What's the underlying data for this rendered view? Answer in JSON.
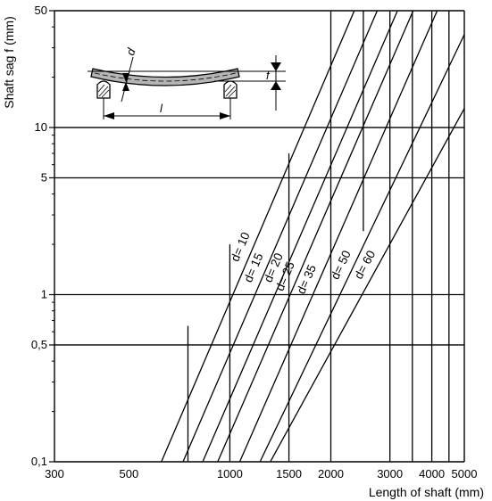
{
  "chart_data": {
    "type": "line",
    "title": "",
    "xlabel": "Length of shaft (mm)",
    "ylabel": "Shaft sag f (mm)",
    "x_scale": "log",
    "y_scale": "log",
    "xlim": [
      300,
      5000
    ],
    "ylim": [
      0.1,
      50
    ],
    "x_ticks": [
      300,
      500,
      1000,
      1500,
      2000,
      3000,
      4000,
      5000
    ],
    "x_tick_labels": [
      "300",
      "500",
      "1000",
      "1500",
      "2000",
      "3000",
      "4000",
      "5000"
    ],
    "y_ticks": [
      0.1,
      0.5,
      1,
      5,
      10,
      50
    ],
    "y_tick_labels": [
      "0,1",
      "0,5",
      "1",
      "5",
      "10",
      "50"
    ],
    "h_gridlines": [
      0.5,
      1,
      5,
      10
    ],
    "v_gridlines": [
      {
        "x": 750,
        "from": 0.1,
        "to": 0.65
      },
      {
        "x": 1000,
        "from": 0.1,
        "to": 2.0
      },
      {
        "x": 1500,
        "from": 0.1,
        "to": 7.0
      },
      {
        "x": 2000,
        "from": 0.1,
        "to": 50
      },
      {
        "x": 2500,
        "from": 2.4,
        "to": 50
      },
      {
        "x": 3000,
        "from": 0.1,
        "to": 50
      },
      {
        "x": 3500,
        "from": 0.1,
        "to": 50
      },
      {
        "x": 4000,
        "from": 0.1,
        "to": 50
      },
      {
        "x": 4500,
        "from": 0.1,
        "to": 50
      }
    ],
    "series": [
      {
        "name": "d= 10",
        "points": [
          [
            625,
            0.1
          ],
          [
            2350,
            50
          ]
        ]
      },
      {
        "name": "d= 15",
        "points": [
          [
            725,
            0.1
          ],
          [
            2750,
            50
          ]
        ]
      },
      {
        "name": "d= 20",
        "points": [
          [
            830,
            0.1
          ],
          [
            3160,
            50
          ]
        ]
      },
      {
        "name": "d= 25",
        "points": [
          [
            920,
            0.1
          ],
          [
            3520,
            50
          ]
        ]
      },
      {
        "name": "d= 35",
        "points": [
          [
            1070,
            0.1
          ],
          [
            4150,
            50
          ]
        ]
      },
      {
        "name": "d= 50",
        "points": [
          [
            1230,
            0.1
          ],
          [
            5000,
            36
          ]
        ]
      },
      {
        "name": "d= 60",
        "points": [
          [
            1320,
            0.1
          ],
          [
            5000,
            13
          ]
        ]
      }
    ]
  },
  "inset": {
    "diameter_label": "d",
    "sag_label": "f",
    "length_label": "l"
  }
}
